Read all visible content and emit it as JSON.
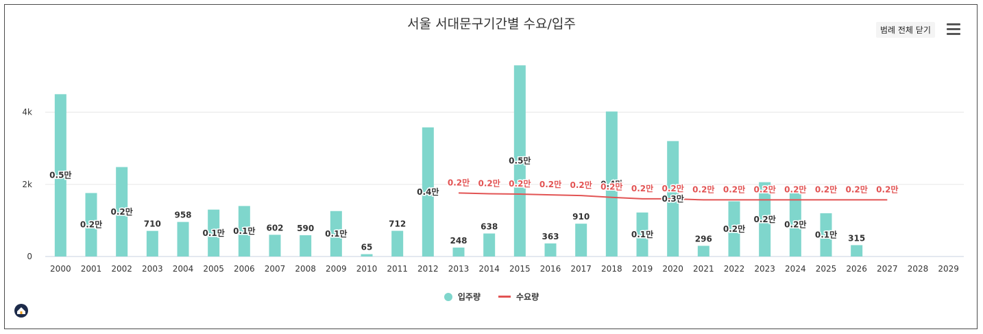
{
  "header": {
    "title": "서울 서대문구기간별 수요/입주",
    "legend_toggle_label": "범례 전체 닫기"
  },
  "colors": {
    "supply": "#7fd6cc",
    "demand": "#e25353",
    "grid": "#e6e6e6",
    "axis_text": "#333333"
  },
  "legend": {
    "supply_label": "입주량",
    "demand_label": "수요량"
  },
  "chart_data": {
    "type": "bar",
    "title": "서울 서대문구기간별 수요/입주",
    "ylim": [
      0,
      5400
    ],
    "yticks": [
      0,
      2000,
      4000
    ],
    "ytick_labels": [
      "0",
      "2k",
      "4k"
    ],
    "grid": true,
    "legend_position": "bottom",
    "categories": [
      "2000",
      "2001",
      "2002",
      "2003",
      "2004",
      "2005",
      "2006",
      "2007",
      "2008",
      "2009",
      "2010",
      "2011",
      "2012",
      "2013",
      "2014",
      "2015",
      "2016",
      "2017",
      "2018",
      "2019",
      "2020",
      "2021",
      "2022",
      "2023",
      "2024",
      "2025",
      "2026",
      "2027",
      "2028",
      "2029"
    ],
    "series": [
      {
        "name": "입주량",
        "type": "bar",
        "values": [
          4500,
          1760,
          2480,
          710,
          958,
          1300,
          1400,
          602,
          590,
          1260,
          65,
          712,
          3580,
          248,
          638,
          5300,
          363,
          910,
          4020,
          1220,
          3200,
          296,
          1530,
          2060,
          1760,
          1200,
          315,
          null,
          null,
          null
        ],
        "labels": [
          "0.5만",
          "0.2만",
          "0.2만",
          "710",
          "958",
          "0.1만",
          "0.1만",
          "602",
          "590",
          "0.1만",
          "65",
          "712",
          "0.4만",
          "248",
          "638",
          "0.5만",
          "363",
          "910",
          "0.4만",
          "0.1만",
          "0.3만",
          "296",
          "0.2만",
          "0.2만",
          "0.2만",
          "0.1만",
          "315",
          "",
          "",
          ""
        ]
      },
      {
        "name": "수요량",
        "type": "line",
        "values": [
          null,
          null,
          null,
          null,
          null,
          null,
          null,
          null,
          null,
          null,
          null,
          null,
          null,
          1760,
          1740,
          1730,
          1710,
          1690,
          1640,
          1600,
          1600,
          1570,
          1570,
          1570,
          1570,
          1570,
          1570,
          1570,
          null,
          null
        ],
        "labels": [
          "",
          "",
          "",
          "",
          "",
          "",
          "",
          "",
          "",
          "",
          "",
          "",
          "",
          "0.2만",
          "0.2만",
          "0.2만",
          "0.2만",
          "0.2만",
          "0.2만",
          "0.2만",
          "0.2만",
          "0.2만",
          "0.2만",
          "0.2만",
          "0.2만",
          "0.2만",
          "0.2만",
          "0.2만",
          "",
          ""
        ]
      }
    ]
  }
}
